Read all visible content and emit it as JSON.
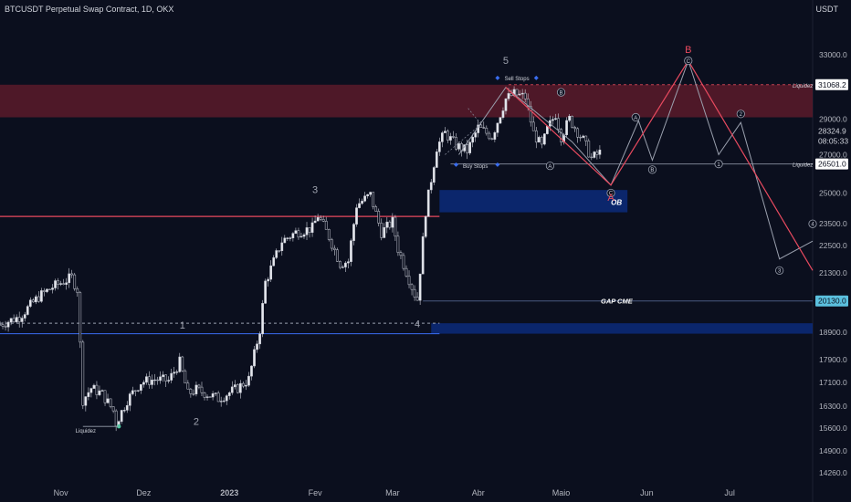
{
  "header": {
    "symbol_title": "BTCUSDT Perpetual Swap Contract, 1D, OKX",
    "currency": "USDT"
  },
  "chart_data": {
    "type": "candlestick",
    "y_scale": "log",
    "ylim": [
      14000,
      35500
    ],
    "xlim": [
      "2022-10-10",
      "2023-07-31"
    ],
    "y_ticks": [
      "33000.0",
      "29000.0",
      "27000.0",
      "25000.0",
      "23500.0",
      "22500.0",
      "21300.0",
      "20100.0",
      "18900.0",
      "17900.0",
      "17100.0",
      "16300.0",
      "15600.0",
      "14900.0",
      "14260.0"
    ],
    "x_ticks": [
      {
        "date": "2022-11-01",
        "label": "Nov"
      },
      {
        "date": "2022-12-01",
        "label": "Dez"
      },
      {
        "date": "2023-01-01",
        "label": "2023"
      },
      {
        "date": "2023-02-01",
        "label": "Fev"
      },
      {
        "date": "2023-03-01",
        "label": "Mar"
      },
      {
        "date": "2023-04-01",
        "label": "Abr"
      },
      {
        "date": "2023-05-01",
        "label": "Maio"
      },
      {
        "date": "2023-06-01",
        "label": "Jun"
      },
      {
        "date": "2023-07-01",
        "label": "Jul"
      }
    ],
    "price_path": [
      [
        "2022-10-10",
        19200
      ],
      [
        "2022-10-17",
        19500
      ],
      [
        "2022-10-24",
        20300
      ],
      [
        "2022-10-29",
        20700
      ],
      [
        "2022-11-05",
        21100
      ],
      [
        "2022-11-07",
        20600
      ],
      [
        "2022-11-09",
        16500
      ],
      [
        "2022-11-12",
        16900
      ],
      [
        "2022-11-16",
        16700
      ],
      [
        "2022-11-20",
        16150
      ],
      [
        "2022-11-21",
        15750
      ],
      [
        "2022-11-25",
        16500
      ],
      [
        "2022-11-30",
        17100
      ],
      [
        "2022-12-05",
        17200
      ],
      [
        "2022-12-10",
        17150
      ],
      [
        "2022-12-14",
        17800
      ],
      [
        "2022-12-17",
        16700
      ],
      [
        "2022-12-20",
        16850
      ],
      [
        "2022-12-28",
        16550
      ],
      [
        "2023-01-04",
        16900
      ],
      [
        "2023-01-08",
        17200
      ],
      [
        "2023-01-12",
        19000
      ],
      [
        "2023-01-14",
        20900
      ],
      [
        "2023-01-20",
        22700
      ],
      [
        "2023-01-25",
        23100
      ],
      [
        "2023-01-31",
        23300
      ],
      [
        "2023-02-02",
        23900
      ],
      [
        "2023-02-06",
        22900
      ],
      [
        "2023-02-10",
        21700
      ],
      [
        "2023-02-13",
        21800
      ],
      [
        "2023-02-16",
        24400
      ],
      [
        "2023-02-21",
        24900
      ],
      [
        "2023-02-25",
        23100
      ],
      [
        "2023-03-01",
        23600
      ],
      [
        "2023-03-03",
        22350
      ],
      [
        "2023-03-09",
        20400
      ],
      [
        "2023-03-10",
        20200
      ],
      [
        "2023-03-13",
        24100
      ],
      [
        "2023-03-17",
        27400
      ],
      [
        "2023-03-20",
        28200
      ],
      [
        "2023-03-24",
        27500
      ],
      [
        "2023-03-28",
        27200
      ],
      [
        "2023-04-01",
        28500
      ],
      [
        "2023-04-06",
        28000
      ],
      [
        "2023-04-11",
        30200
      ],
      [
        "2023-04-14",
        30500
      ],
      [
        "2023-04-18",
        30300
      ],
      [
        "2023-04-21",
        28200
      ],
      [
        "2023-04-24",
        27400
      ],
      [
        "2023-04-26",
        28400
      ],
      [
        "2023-04-29",
        29300
      ],
      [
        "2023-05-01",
        28000
      ],
      [
        "2023-05-04",
        29000
      ],
      [
        "2023-05-09",
        27800
      ],
      [
        "2023-05-12",
        26800
      ],
      [
        "2023-05-15",
        27100
      ]
    ],
    "zones": [
      {
        "label": "",
        "from": "2022-10-10",
        "to": "2023-07-31",
        "low": 29100,
        "high": 31068.2,
        "color": "#5a1a2a"
      },
      {
        "label": "OB",
        "from": "2023-03-18",
        "to": "2023-05-25",
        "low": 24050,
        "high": 25150,
        "color": "#0c2a7a"
      },
      {
        "label": "",
        "from": "2023-03-15",
        "to": "2023-07-31",
        "low": 18850,
        "high": 19250,
        "color": "#0c2a7a"
      }
    ],
    "horizontal_lines": [
      {
        "label": "",
        "price": 23850,
        "from": "2022-10-10",
        "to": "2023-03-18",
        "color": "#e84a5f",
        "dash": false
      },
      {
        "label": "",
        "price": 18850,
        "from": "2022-10-10",
        "to": "2023-03-18",
        "color": "#3a6df0",
        "dash": false
      },
      {
        "label": "",
        "price": 19250,
        "from": "2022-10-10",
        "to": "2023-03-18",
        "color": "#9aa0b0",
        "dash": true
      },
      {
        "label": "Liquidez",
        "price": 26501,
        "from": "2023-03-22",
        "to": "2023-07-31",
        "color": "#7a8090",
        "dash": false
      },
      {
        "label": "Liquidez",
        "price": 31068.2,
        "from": "2023-04-12",
        "to": "2023-07-31",
        "color": "#c04050",
        "dash": true
      },
      {
        "label": "GAP CME",
        "price": 20130,
        "from": "2023-03-12",
        "to": "2023-07-31",
        "color": "#4a5a80",
        "dash": false
      }
    ],
    "price_labels": [
      {
        "price": 31068.2,
        "text": "31068.2",
        "style": "light"
      },
      {
        "price": 28324.9,
        "text": "28324.9",
        "style": "dark"
      },
      {
        "price": 27750,
        "text": "08:05:33",
        "style": "dark"
      },
      {
        "price": 26501,
        "text": "26501.0",
        "style": "light"
      },
      {
        "price": 20130,
        "text": "20130.0",
        "style": "cyan"
      }
    ],
    "wave_labels": [
      {
        "text": "1",
        "date": "2022-12-15",
        "price": 19050,
        "color": "#a0a4b0"
      },
      {
        "text": "2",
        "date": "2022-12-20",
        "price": 15700,
        "color": "#a0a4b0"
      },
      {
        "text": "3",
        "date": "2023-02-01",
        "price": 25000,
        "color": "#a0a4b0"
      },
      {
        "text": "4",
        "date": "2023-03-10",
        "price": 19100,
        "color": "#a0a4b0"
      },
      {
        "text": "5",
        "date": "2023-04-11",
        "price": 32400,
        "color": "#a0a4b0"
      },
      {
        "text": "B",
        "date": "2023-06-16",
        "price": 33100,
        "color": "#e84a5f"
      },
      {
        "text": "A",
        "date": "2023-05-19",
        "price": 24600,
        "color": "#e84a5f"
      }
    ],
    "annotations": [
      {
        "text": "Sell Stops",
        "date": "2023-04-15",
        "price": 31350
      },
      {
        "text": "Buy Stops",
        "date": "2023-03-31",
        "price": 26300
      },
      {
        "text": "Liquidez",
        "date": "2022-11-10",
        "price": 15450
      }
    ],
    "projection_red": [
      [
        "2023-04-11",
        30900
      ],
      [
        "2023-05-19",
        25400
      ],
      [
        "2023-06-16",
        32600
      ],
      [
        "2023-07-31",
        21400
      ]
    ],
    "projection_gray": [
      [
        "2023-03-25",
        27000
      ],
      [
        "2023-04-11",
        30900
      ],
      [
        "2023-05-05",
        27700
      ],
      [
        "2023-05-19",
        25400
      ],
      [
        "2023-05-29",
        28900
      ],
      [
        "2023-06-03",
        26700
      ],
      [
        "2023-06-16",
        32600
      ],
      [
        "2023-06-27",
        27000
      ],
      [
        "2023-07-05",
        28800
      ],
      [
        "2023-07-19",
        21900
      ],
      [
        "2023-07-31",
        22700
      ]
    ],
    "circle_labels": [
      {
        "text": "B",
        "date": "2023-05-01",
        "price": 30600
      },
      {
        "text": "A",
        "date": "2023-04-27",
        "price": 26400
      },
      {
        "text": "C",
        "date": "2023-05-19",
        "price": 25000
      },
      {
        "text": "A",
        "date": "2023-05-28",
        "price": 29100
      },
      {
        "text": "B",
        "date": "2023-06-03",
        "price": 26200
      },
      {
        "text": "C",
        "date": "2023-06-16",
        "price": 32600
      },
      {
        "text": "1",
        "date": "2023-06-27",
        "price": 26500
      },
      {
        "text": "2",
        "date": "2023-07-05",
        "price": 29300
      },
      {
        "text": "3",
        "date": "2023-07-19",
        "price": 21400
      },
      {
        "text": "4",
        "date": "2023-07-31",
        "price": 23500
      }
    ]
  }
}
